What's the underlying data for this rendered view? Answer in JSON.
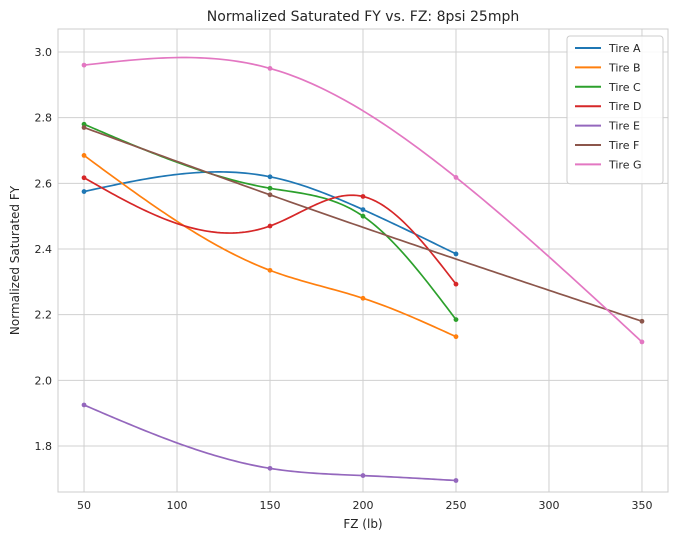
{
  "chart_data": {
    "type": "line",
    "title": "Normalized Saturated FY vs. FZ: 8psi 25mph",
    "xlabel": "FZ (lb)",
    "ylabel": "Normalized Saturated FY",
    "xlim": [
      36,
      364
    ],
    "ylim": [
      1.66,
      3.07
    ],
    "xticks": [
      50,
      100,
      150,
      200,
      250,
      300,
      350
    ],
    "yticks": [
      1.8,
      2.0,
      2.2,
      2.4,
      2.6,
      2.8,
      3.0
    ],
    "xtick_labels": [
      "50",
      "100",
      "150",
      "200",
      "250",
      "300",
      "350"
    ],
    "ytick_labels": [
      "1.8",
      "2.0",
      "2.2",
      "2.4",
      "2.6",
      "2.8",
      "3.0"
    ],
    "grid": true,
    "legend_position": "top-right",
    "smooth_curves": true,
    "series": [
      {
        "name": "Tire A",
        "color": "#1f77b4",
        "x": [
          50,
          150,
          200,
          250
        ],
        "y": [
          2.575,
          2.62,
          2.52,
          2.385
        ]
      },
      {
        "name": "Tire B",
        "color": "#ff7f0e",
        "x": [
          50,
          150,
          200,
          250
        ],
        "y": [
          2.685,
          2.335,
          2.25,
          2.133
        ]
      },
      {
        "name": "Tire C",
        "color": "#2ca02c",
        "x": [
          50,
          150,
          200,
          250
        ],
        "y": [
          2.78,
          2.585,
          2.5,
          2.185
        ]
      },
      {
        "name": "Tire D",
        "color": "#d62728",
        "x": [
          50,
          150,
          200,
          250
        ],
        "y": [
          2.617,
          2.47,
          2.56,
          2.293
        ]
      },
      {
        "name": "Tire E",
        "color": "#9467bd",
        "x": [
          50,
          150,
          200,
          250
        ],
        "y": [
          1.925,
          1.732,
          1.71,
          1.695
        ]
      },
      {
        "name": "Tire F",
        "color": "#8c564b",
        "x": [
          50,
          150,
          350
        ],
        "y": [
          2.77,
          2.565,
          2.18
        ]
      },
      {
        "name": "Tire G",
        "color": "#e377c2",
        "x": [
          50,
          150,
          250,
          350
        ],
        "y": [
          2.96,
          2.95,
          2.618,
          2.117
        ]
      }
    ]
  }
}
